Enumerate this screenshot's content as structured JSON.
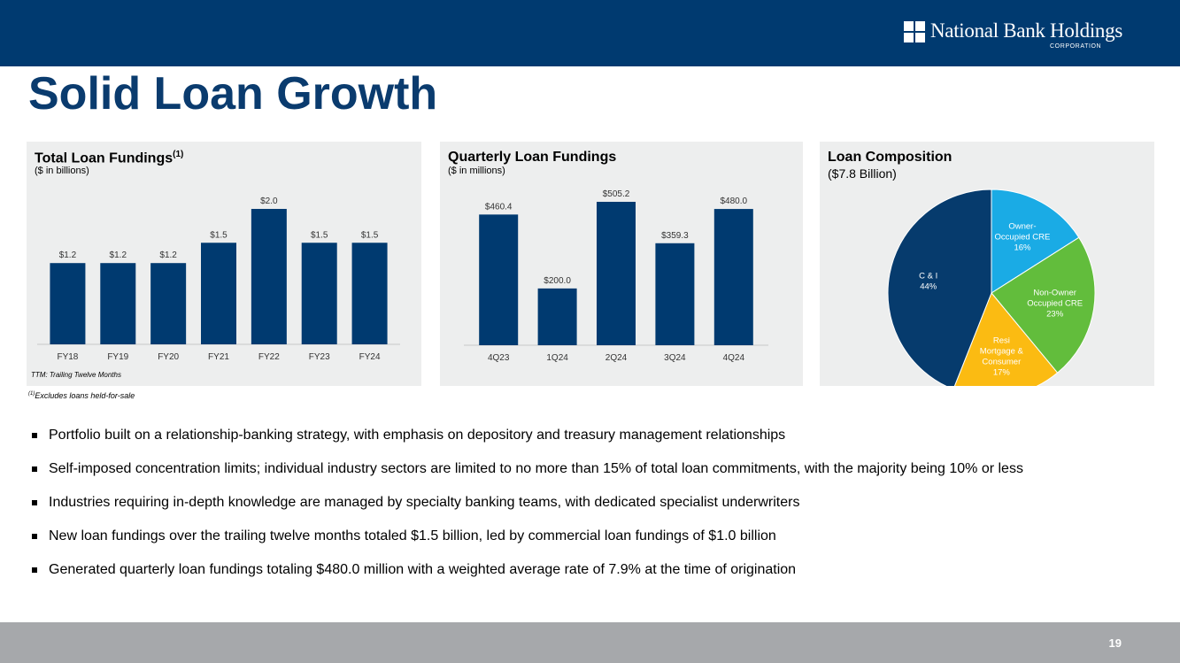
{
  "header": {
    "logo_name": "National Bank Holdings",
    "logo_sub": "CORPORATION",
    "title": "Solid Loan Growth"
  },
  "colors": {
    "navy": "#003a70",
    "bar": "#003a70",
    "title": "#0a3b6e",
    "pie": [
      "#1aabe5",
      "#62bd3c",
      "#fbbb12",
      "#063b6d"
    ]
  },
  "chart_data": [
    {
      "type": "bar",
      "title": "Total Loan Fundings",
      "title_sup": "(1)",
      "subtitle": "($ in billions)",
      "categories": [
        "FY18",
        "FY19",
        "FY20",
        "FY21",
        "FY22",
        "FY23",
        "FY24"
      ],
      "values": [
        1.2,
        1.2,
        1.2,
        1.5,
        2.0,
        1.5,
        1.5
      ],
      "labels": [
        "$1.2",
        "$1.2",
        "$1.2",
        "$1.5",
        "$2.0",
        "$1.5",
        "$1.5"
      ],
      "ylim": [
        0,
        2.0
      ],
      "note": "TTM: Trailing Twelve Months"
    },
    {
      "type": "bar",
      "title": "Quarterly Loan Fundings",
      "subtitle": "($ in millions)",
      "categories": [
        "4Q23",
        "1Q24",
        "2Q24",
        "3Q24",
        "4Q24"
      ],
      "values": [
        460.4,
        200.0,
        505.2,
        359.3,
        480.0
      ],
      "labels": [
        "$460.4",
        "$200.0",
        "$505.2",
        "$359.3",
        "$480.0"
      ],
      "ylim": [
        0,
        505.2
      ]
    },
    {
      "type": "pie",
      "title": "Loan Composition",
      "subtitle": "($7.8 Billion)",
      "slices": [
        {
          "lines": [
            "Owner-",
            "Occupied CRE",
            "16%"
          ],
          "value": 16
        },
        {
          "lines": [
            "Non-Owner",
            "Occupied CRE",
            "23%"
          ],
          "value": 23
        },
        {
          "lines": [
            "Resi",
            "Mortgage &",
            "Consumer",
            "17%"
          ],
          "value": 17
        },
        {
          "lines": [
            "C & I",
            "44%"
          ],
          "value": 44
        }
      ]
    }
  ],
  "footnote_mark": "(1)",
  "footnote": "Excludes loans held-for-sale",
  "bullets": [
    "Portfolio built on a relationship-banking strategy, with emphasis on depository and treasury management relationships",
    "Self-imposed concentration limits; individual industry sectors are limited to no more than 15% of total loan commitments, with the majority being 10% or less",
    "Industries requiring in-depth knowledge are managed by specialty banking teams, with dedicated specialist underwriters",
    "New loan fundings over the trailing twelve months totaled $1.5 billion, led by commercial loan fundings of $1.0 billion",
    "Generated quarterly loan fundings totaling $480.0 million with a weighted average rate of 7.9% at the time of origination"
  ],
  "page_number": "19"
}
